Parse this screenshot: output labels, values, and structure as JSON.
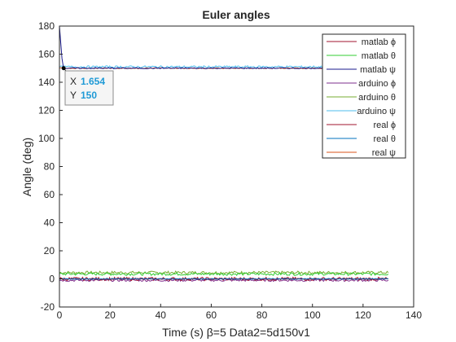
{
  "chart_data": {
    "type": "line",
    "title": "Euler angles",
    "xlabel": "Time (s) β=5 Data2=5d150v1",
    "ylabel": "Angle (deg)",
    "xlim": [
      0,
      140
    ],
    "ylim": [
      -20,
      180
    ],
    "xticks": [
      0,
      20,
      40,
      60,
      80,
      100,
      120,
      140
    ],
    "yticks": [
      -20,
      0,
      20,
      40,
      60,
      80,
      100,
      120,
      140,
      160,
      180
    ],
    "grid": false,
    "legend_position": "top-right",
    "series": [
      {
        "name": "matlab ϕ",
        "color": "#a2142f",
        "x": [
          0,
          130
        ],
        "y": [
          0,
          0
        ]
      },
      {
        "name": "matlab θ",
        "color": "#33cc33",
        "x": [
          0,
          130
        ],
        "y": [
          3.5,
          3.5
        ]
      },
      {
        "name": "matlab ψ",
        "color": "#1a1a8c",
        "x": [
          0,
          0.5,
          1.0,
          1.654,
          130
        ],
        "y": [
          180,
          168,
          157,
          150,
          150
        ]
      },
      {
        "name": "arduino ϕ",
        "color": "#7e2f8e",
        "x": [
          0,
          130
        ],
        "y": [
          -1,
          -1
        ]
      },
      {
        "name": "arduino θ",
        "color": "#77ac30",
        "x": [
          0,
          130
        ],
        "y": [
          4.5,
          4.5
        ]
      },
      {
        "name": "arduino ψ",
        "color": "#4dbeee",
        "x": [
          0,
          130
        ],
        "y": [
          151,
          151
        ]
      },
      {
        "name": "real ϕ",
        "color": "#a2142f",
        "x": [
          0,
          130
        ],
        "y": [
          0,
          0
        ]
      },
      {
        "name": "real θ",
        "color": "#0072bd",
        "x": [
          0,
          130
        ],
        "y": [
          0,
          0
        ]
      },
      {
        "name": "real ψ",
        "color": "#d95319",
        "x": [
          0,
          130
        ],
        "y": [
          150,
          150
        ]
      }
    ],
    "datatip": {
      "x_label": "X",
      "x_value": "1.654",
      "y_label": "Y",
      "y_value": "150",
      "point": [
        1.654,
        150
      ]
    }
  }
}
